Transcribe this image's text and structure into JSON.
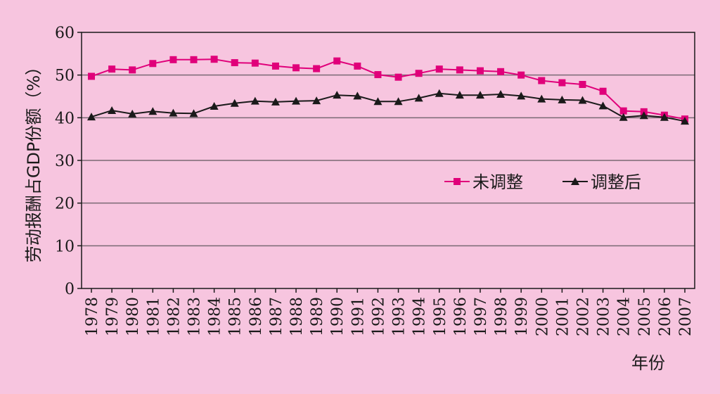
{
  "chart_data": {
    "type": "line",
    "title": "",
    "xlabel": "年份",
    "ylabel": "劳动报酬占GDP份额（%）",
    "ylim": [
      0,
      60
    ],
    "yticks": [
      0,
      10,
      20,
      30,
      40,
      50,
      60
    ],
    "grid": true,
    "legend_position": "center-right",
    "categories": [
      "1978",
      "1979",
      "1980",
      "1981",
      "1982",
      "1983",
      "1984",
      "1985",
      "1986",
      "1987",
      "1988",
      "1989",
      "1990",
      "1991",
      "1992",
      "1993",
      "1994",
      "1995",
      "1996",
      "1997",
      "1998",
      "1999",
      "2000",
      "2001",
      "2002",
      "2003",
      "2004",
      "2005",
      "2006",
      "2007"
    ],
    "series": [
      {
        "name": "未调整",
        "color": "#e0007a",
        "marker": "square",
        "values": [
          49.7,
          51.4,
          51.2,
          52.7,
          53.6,
          53.6,
          53.7,
          52.9,
          52.8,
          52.1,
          51.7,
          51.5,
          53.3,
          52.1,
          50.1,
          49.5,
          50.4,
          51.4,
          51.2,
          51.0,
          50.8,
          50.0,
          48.7,
          48.2,
          47.8,
          46.2,
          41.6,
          41.4,
          40.6,
          39.7
        ]
      },
      {
        "name": "调整后",
        "color": "#1a1a1a",
        "marker": "triangle",
        "values": [
          40.2,
          41.7,
          40.9,
          41.5,
          41.1,
          41.0,
          42.7,
          43.4,
          43.9,
          43.7,
          43.9,
          44.0,
          45.3,
          45.1,
          43.8,
          43.8,
          44.6,
          45.7,
          45.3,
          45.3,
          45.5,
          45.1,
          44.4,
          44.2,
          44.1,
          42.8,
          40.1,
          40.5,
          40.1,
          39.2
        ]
      }
    ]
  }
}
